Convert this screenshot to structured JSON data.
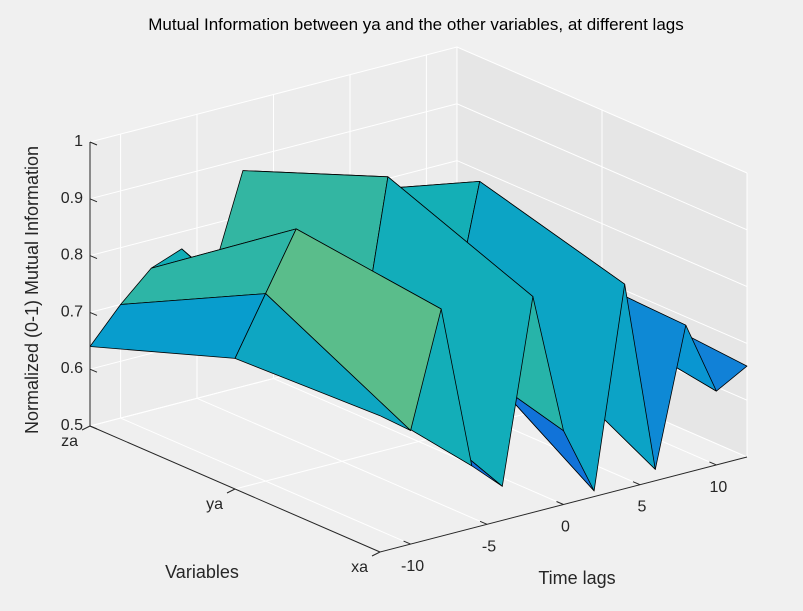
{
  "chart_data": {
    "type": "surface",
    "title": "Mutual Information between ya and the other variables, at different lags",
    "xlabel": "Time lags",
    "ylabel": "Variables",
    "zlabel": "Normalized (0-1) Mutual Information",
    "x": [
      -12,
      -10,
      -8,
      -6,
      -4,
      -2,
      0,
      2,
      4,
      6,
      8,
      10,
      12
    ],
    "x_ticks": [
      "-10",
      "-5",
      "0",
      "5",
      "10"
    ],
    "x_tick_values": [
      -10,
      -5,
      0,
      5,
      10
    ],
    "y_ticks": [
      "xa",
      "ya",
      "za"
    ],
    "z_ticks": [
      "0.5",
      "0.6",
      "0.7",
      "0.8",
      "0.9",
      "1"
    ],
    "z_tick_values": [
      0.5,
      0.6,
      0.7,
      0.8,
      0.9,
      1.0
    ],
    "xlim": [
      -12,
      12
    ],
    "zlim": [
      0.5,
      1.0
    ],
    "grid": true,
    "colormap": "parula",
    "series": [
      {
        "name": "xa",
        "values": [
          0.74,
          0.7,
          0.9,
          0.61,
          0.56,
          0.88,
          0.63,
          0.51,
          0.86,
          0.52,
          0.76,
          0.63,
          0.66
        ]
      },
      {
        "name": "ya",
        "values": [
          0.73,
          0.83,
          0.93,
          0.65,
          0.66,
          0.98,
          0.7,
          0.68,
          0.93,
          0.66,
          0.77,
          0.67,
          0.68
        ]
      },
      {
        "name": "za",
        "values": [
          0.64,
          0.7,
          0.75,
          0.77,
          0.71,
          0.88,
          0.6,
          0.7,
          0.8,
          0.7,
          0.77,
          0.64,
          0.61
        ]
      }
    ]
  }
}
